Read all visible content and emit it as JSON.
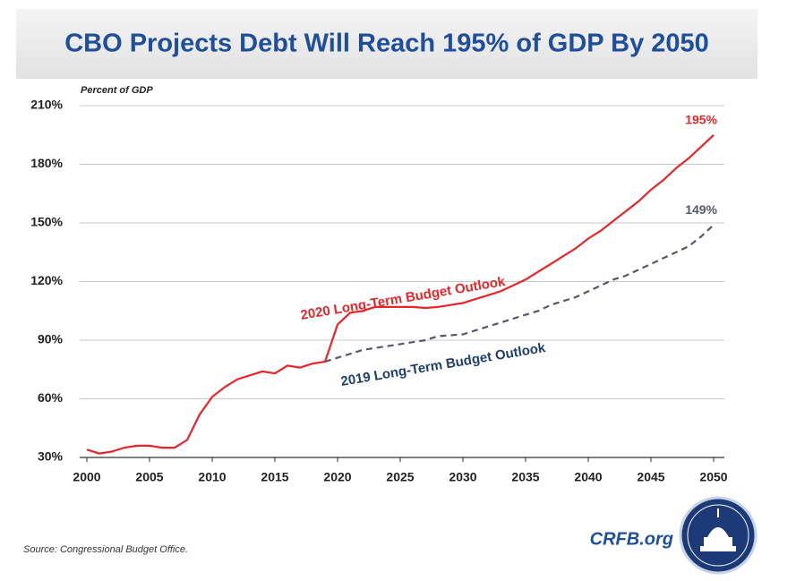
{
  "chart_data": {
    "type": "line",
    "title": "CBO Projects Debt Will Reach 195% of GDP By 2050",
    "y_label": "Percent of GDP",
    "source": "Source: Congressional Budget Office.",
    "brand": "CRFB.org",
    "x": [
      2000,
      2001,
      2002,
      2003,
      2004,
      2005,
      2006,
      2007,
      2008,
      2009,
      2010,
      2011,
      2012,
      2013,
      2014,
      2015,
      2016,
      2017,
      2018,
      2019,
      2020,
      2021,
      2022,
      2023,
      2024,
      2025,
      2026,
      2027,
      2028,
      2029,
      2030,
      2031,
      2032,
      2033,
      2034,
      2035,
      2036,
      2037,
      2038,
      2039,
      2040,
      2041,
      2042,
      2043,
      2044,
      2045,
      2046,
      2047,
      2048,
      2049,
      2050
    ],
    "xlim": [
      2000,
      2050
    ],
    "xticks": [
      2000,
      2005,
      2010,
      2015,
      2020,
      2025,
      2030,
      2035,
      2040,
      2045,
      2050
    ],
    "ylim": [
      30,
      210
    ],
    "yticks": [
      {
        "value": 30,
        "label": "30%"
      },
      {
        "value": 60,
        "label": "60%"
      },
      {
        "value": 90,
        "label": "90%"
      },
      {
        "value": 120,
        "label": "120%"
      },
      {
        "value": 150,
        "label": "150%"
      },
      {
        "value": 180,
        "label": "180%"
      },
      {
        "value": 210,
        "label": "210%"
      }
    ],
    "grid": true,
    "series": [
      {
        "name": "2020 Long-Term Budget Outlook",
        "color": "#e8262a",
        "dashed": false,
        "values": [
          34,
          32,
          33,
          35,
          36,
          36,
          35,
          35,
          39,
          52,
          61,
          66,
          70,
          72,
          74,
          73,
          77,
          76,
          78,
          79,
          98,
          104,
          105,
          107,
          107,
          107,
          107,
          106.5,
          107,
          108,
          109,
          111,
          113,
          115,
          118,
          121,
          125,
          129,
          133,
          137,
          142,
          146,
          151,
          156,
          161,
          167,
          172,
          178,
          183,
          189,
          195
        ],
        "value_labels": [
          null,
          null,
          null,
          null,
          null,
          null,
          null,
          null,
          null,
          null,
          null,
          null,
          null,
          null,
          null,
          null,
          null,
          null,
          null,
          null,
          null,
          null,
          null,
          null,
          null,
          null,
          null,
          null,
          null,
          null,
          null,
          null,
          null,
          null,
          null,
          null,
          null,
          null,
          null,
          null,
          null,
          null,
          null,
          null,
          null,
          null,
          null,
          null,
          null,
          null,
          "195%"
        ]
      },
      {
        "name": "2019 Long-Term Budget Outlook",
        "color": "#555a6a",
        "dashed": true,
        "values": [
          null,
          null,
          null,
          null,
          null,
          null,
          null,
          null,
          null,
          null,
          null,
          null,
          null,
          null,
          null,
          null,
          null,
          null,
          null,
          79,
          81,
          83,
          85,
          86,
          87,
          88,
          89,
          90,
          92,
          92.5,
          93,
          95,
          97,
          99,
          101,
          103,
          105,
          108,
          110,
          112,
          115,
          118,
          121,
          123,
          126,
          129,
          132,
          135,
          138,
          143,
          149
        ],
        "value_labels": [
          null,
          null,
          null,
          null,
          null,
          null,
          null,
          null,
          null,
          null,
          null,
          null,
          null,
          null,
          null,
          null,
          null,
          null,
          null,
          null,
          null,
          null,
          null,
          null,
          null,
          null,
          null,
          null,
          null,
          null,
          null,
          null,
          null,
          null,
          null,
          null,
          null,
          null,
          null,
          null,
          null,
          null,
          null,
          null,
          null,
          null,
          null,
          null,
          null,
          null,
          "149%"
        ]
      }
    ]
  }
}
